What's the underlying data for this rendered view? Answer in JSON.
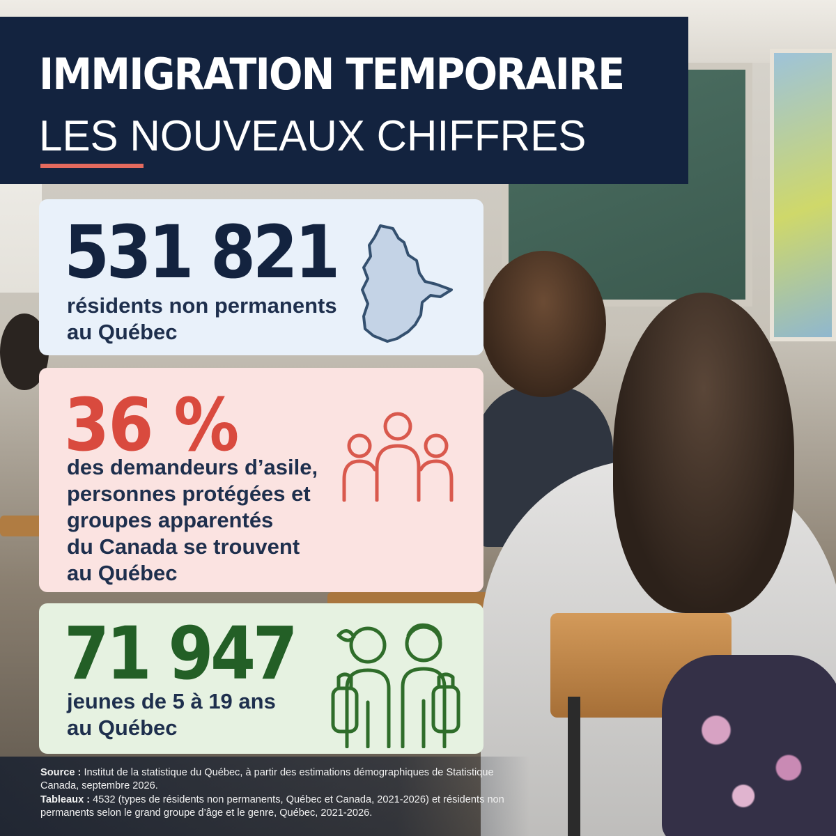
{
  "header": {
    "title_line1": "IMMIGRATION TEMPORAIRE",
    "title_line2": "LES NOUVEAUX CHIFFRES"
  },
  "stats": [
    {
      "value": "531 821",
      "description_lines": [
        "résidents non permanents",
        "au Québec"
      ],
      "icon": "quebec-map-icon",
      "color": "#13233f",
      "background": "#e9f1fa"
    },
    {
      "value": "36 %",
      "description_lines": [
        "des demandeurs d’asile,",
        "personnes protégées et",
        "groupes apparentés",
        "du Canada se trouvent",
        "au Québec"
      ],
      "icon": "group-of-people-icon",
      "color": "#d94a3e",
      "background": "#fbe3e1"
    },
    {
      "value": "71 947",
      "description_lines": [
        "jeunes de 5 à 19 ans",
        "au Québec"
      ],
      "icon": "students-with-backpacks-icon",
      "color": "#235f26",
      "background": "#e6f2e1"
    }
  ],
  "footer": {
    "source_label": "Source :",
    "source_text": " Institut de la statistique du Québec, à partir des estimations démographiques de Statistique Canada, septembre 2026.",
    "tables_label": "Tableaux :",
    "tables_text": " 4532 (types de résidents non permanents, Québec et Canada, 2021-2026) et résidents non permanents selon le grand groupe d’âge et le genre, Québec, 2021-2026."
  },
  "colors": {
    "header_bg": "#13233f",
    "accent": "#e46a5e"
  }
}
